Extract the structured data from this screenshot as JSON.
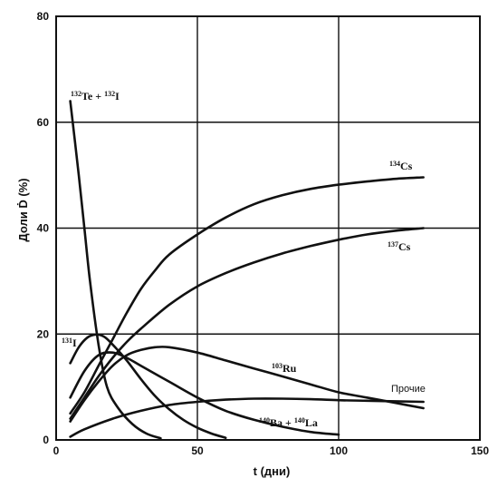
{
  "chart_data": {
    "type": "line",
    "xlabel": "t (дни)",
    "ylabel": "Доли Ḋ (%)",
    "xlim": [
      0,
      150
    ],
    "ylim": [
      0,
      80
    ],
    "xticks": [
      "0",
      "50",
      "100",
      "150"
    ],
    "yticks": [
      "0",
      "20",
      "40",
      "60",
      "80"
    ],
    "grid": true,
    "series": [
      {
        "key": "te_i",
        "label_html": "<tspan baseline-shift=\"super\" font-size=\"8\">132</tspan>Te + <tspan baseline-shift=\"super\" font-size=\"8\">132</tspan>I",
        "x": [
          5,
          8,
          10,
          12,
          15,
          18,
          22,
          27,
          32,
          37
        ],
        "y": [
          64,
          50,
          40,
          30,
          18,
          10,
          6,
          3,
          1.2,
          0.3
        ]
      },
      {
        "key": "i131",
        "label_html": "<tspan baseline-shift=\"super\" font-size=\"8\">131</tspan>I",
        "x": [
          5,
          8,
          11,
          14,
          17,
          20,
          25,
          30,
          35,
          40,
          45,
          50,
          55,
          60
        ],
        "y": [
          14.5,
          17.5,
          19.3,
          19.9,
          19.5,
          18.0,
          15.0,
          11.5,
          8.3,
          5.8,
          3.8,
          2.3,
          1.2,
          0.4
        ]
      },
      {
        "key": "ba_la",
        "label_html": "<tspan baseline-shift=\"super\" font-size=\"8\">140</tspan>Ba + <tspan baseline-shift=\"super\" font-size=\"8\">140</tspan>La",
        "x": [
          5,
          10,
          15,
          20,
          25,
          30,
          40,
          50,
          60,
          70,
          80,
          90,
          100
        ],
        "y": [
          8,
          13,
          16,
          16.5,
          15.5,
          14,
          11,
          8,
          5.5,
          3.8,
          2.5,
          1.5,
          1
        ]
      },
      {
        "key": "ru103",
        "label_html": "<tspan baseline-shift=\"super\" font-size=\"8\">103</tspan>Ru",
        "x": [
          5,
          10,
          15,
          20,
          25,
          30,
          35,
          40,
          50,
          60,
          70,
          80,
          90,
          100,
          110,
          120,
          130
        ],
        "y": [
          3.5,
          7.5,
          11,
          14,
          16,
          17,
          17.5,
          17.5,
          16.5,
          15,
          13.5,
          12,
          10.5,
          9,
          8,
          7,
          6
        ]
      },
      {
        "key": "other",
        "label_html": "Прочие",
        "sans": true,
        "x": [
          5,
          10,
          20,
          30,
          40,
          50,
          60,
          70,
          80,
          90,
          100,
          110,
          120,
          130
        ],
        "y": [
          0.6,
          2,
          4,
          5.5,
          6.6,
          7.2,
          7.6,
          7.8,
          7.8,
          7.7,
          7.5,
          7.4,
          7.3,
          7.2
        ]
      },
      {
        "key": "cs134",
        "label_html": "<tspan baseline-shift=\"super\" font-size=\"8\">134</tspan>Cs",
        "x": [
          5,
          10,
          15,
          20,
          25,
          30,
          35,
          40,
          50,
          60,
          70,
          80,
          90,
          100,
          110,
          120,
          130
        ],
        "y": [
          5,
          9,
          14,
          19,
          24,
          28.5,
          32,
          35,
          38.8,
          42,
          44.5,
          46.2,
          47.4,
          48.2,
          48.8,
          49.3,
          49.6
        ]
      },
      {
        "key": "cs137",
        "label_html": "<tspan baseline-shift=\"super\" font-size=\"8\">137</tspan>Cs",
        "x": [
          5,
          10,
          15,
          20,
          25,
          30,
          40,
          50,
          60,
          70,
          80,
          90,
          100,
          110,
          120,
          130
        ],
        "y": [
          4,
          8,
          12,
          15.5,
          18.5,
          21,
          25.5,
          29,
          31.5,
          33.5,
          35.2,
          36.6,
          37.8,
          38.8,
          39.5,
          40
        ]
      }
    ]
  }
}
